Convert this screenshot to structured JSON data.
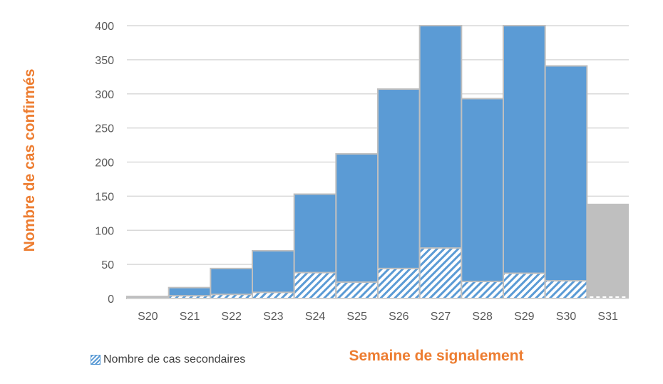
{
  "chart_data": {
    "type": "bar",
    "xlabel": "Semaine de signalement",
    "ylabel": "Nombre de cas confirmés",
    "ylim": [
      0,
      400
    ],
    "yticks": [
      0,
      50,
      100,
      150,
      200,
      250,
      300,
      350,
      400
    ],
    "grid": true,
    "categories": [
      "S20",
      "S21",
      "S22",
      "S23",
      "S24",
      "S25",
      "S26",
      "S27",
      "S28",
      "S29",
      "S30",
      "S31"
    ],
    "series": [
      {
        "values": [
          3,
          16,
          44,
          70,
          153,
          212,
          307,
          400,
          293,
          400,
          341,
          139
        ]
      },
      {
        "name": "Nombre de cas secondaires",
        "values": [
          1,
          4,
          6,
          9,
          38,
          24,
          44,
          74,
          25,
          37,
          26,
          2
        ]
      }
    ],
    "legend": {
      "position": "bottom-left",
      "entries": [
        "Nombre de cas secondaires"
      ]
    },
    "colors": {
      "total": "#5B9BD5",
      "incomplete_week": "#BFBFBF",
      "secondary_hatch": "#5B9BD5",
      "axis_title": "#ED7D31"
    }
  }
}
